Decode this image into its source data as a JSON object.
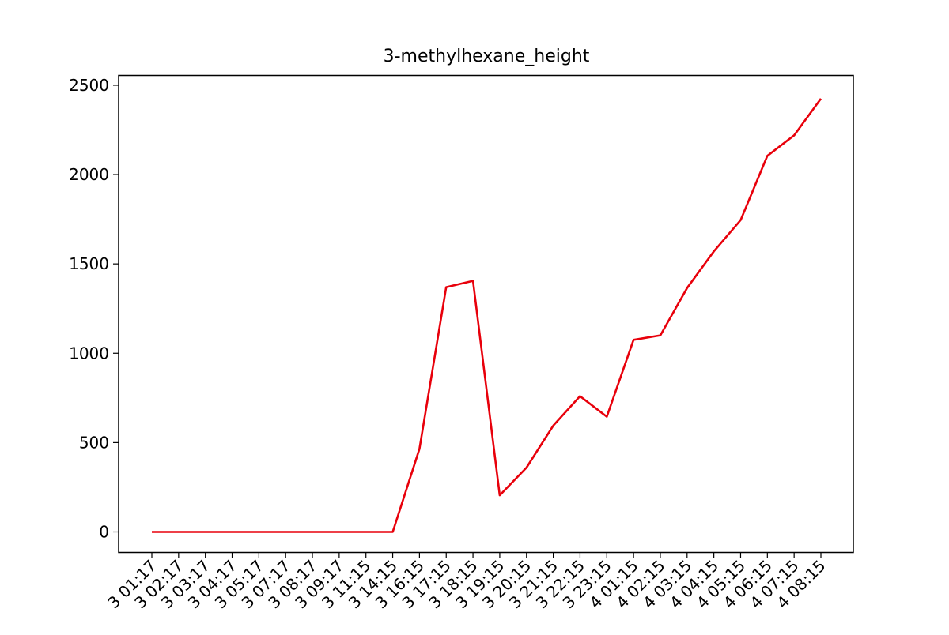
{
  "chart_data": {
    "type": "line",
    "title": "3-methylhexane_height",
    "xlabel": "",
    "ylabel": "",
    "ylim": [
      -115,
      2555
    ],
    "yticks": [
      0,
      500,
      1000,
      1500,
      2000,
      2500
    ],
    "grid": false,
    "categories": [
      "3 01:17",
      "3 02:17",
      "3 03:17",
      "3 04:17",
      "3 05:17",
      "3 07:17",
      "3 08:17",
      "3 09:17",
      "3 11:15",
      "3 14:15",
      "3 16:15",
      "3 17:15",
      "3 18:15",
      "3 19:15",
      "3 20:15",
      "3 21:15",
      "3 22:15",
      "3 23:15",
      "4 01:15",
      "4 02:15",
      "4 03:15",
      "4 04:15",
      "4 05:15",
      "4 06:15",
      "4 07:15",
      "4 08:15"
    ],
    "series": [
      {
        "color": "#e8000b",
        "values": [
          0,
          0,
          0,
          0,
          0,
          0,
          0,
          0,
          0,
          0,
          465,
          1370,
          1405,
          205,
          360,
          595,
          760,
          645,
          1075,
          1100,
          1365,
          1570,
          1745,
          2105,
          2220,
          2425
        ]
      }
    ]
  }
}
